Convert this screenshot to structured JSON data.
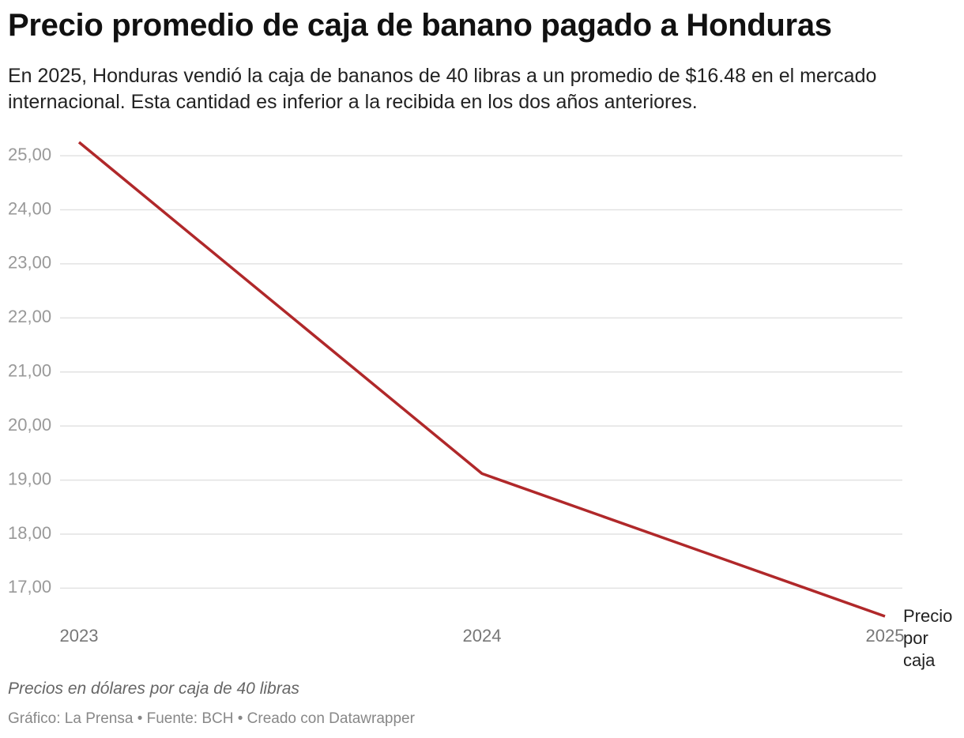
{
  "chart_data": {
    "type": "line",
    "title": "Precio promedio de caja de banano pagado a Honduras",
    "subtitle": "En 2025, Honduras vendió la caja de bananos de 40 libras a un promedio de $16.48 en el mercado internacional. Esta cantidad es inferior a la recibida en los dos años anteriores.",
    "categories": [
      "2023",
      "2024",
      "2025"
    ],
    "series": [
      {
        "name": "Precio por caja",
        "color": "#b0282a",
        "values": [
          25.25,
          19.12,
          16.48
        ]
      }
    ],
    "ylim": [
      16.48,
      25.25
    ],
    "yticks": [
      {
        "value": 17,
        "label": "17,00"
      },
      {
        "value": 18,
        "label": "18,00"
      },
      {
        "value": 19,
        "label": "19,00"
      },
      {
        "value": 20,
        "label": "20,00"
      },
      {
        "value": 21,
        "label": "21,00"
      },
      {
        "value": 22,
        "label": "22,00"
      },
      {
        "value": 23,
        "label": "23,00"
      },
      {
        "value": 24,
        "label": "24,00"
      },
      {
        "value": 25,
        "label": "25,00"
      }
    ],
    "grid": true,
    "note": "Precios en dólares por caja de 40 libras",
    "source": "Gráfico: La Prensa • Fuente: BCH • Creado con Datawrapper"
  }
}
